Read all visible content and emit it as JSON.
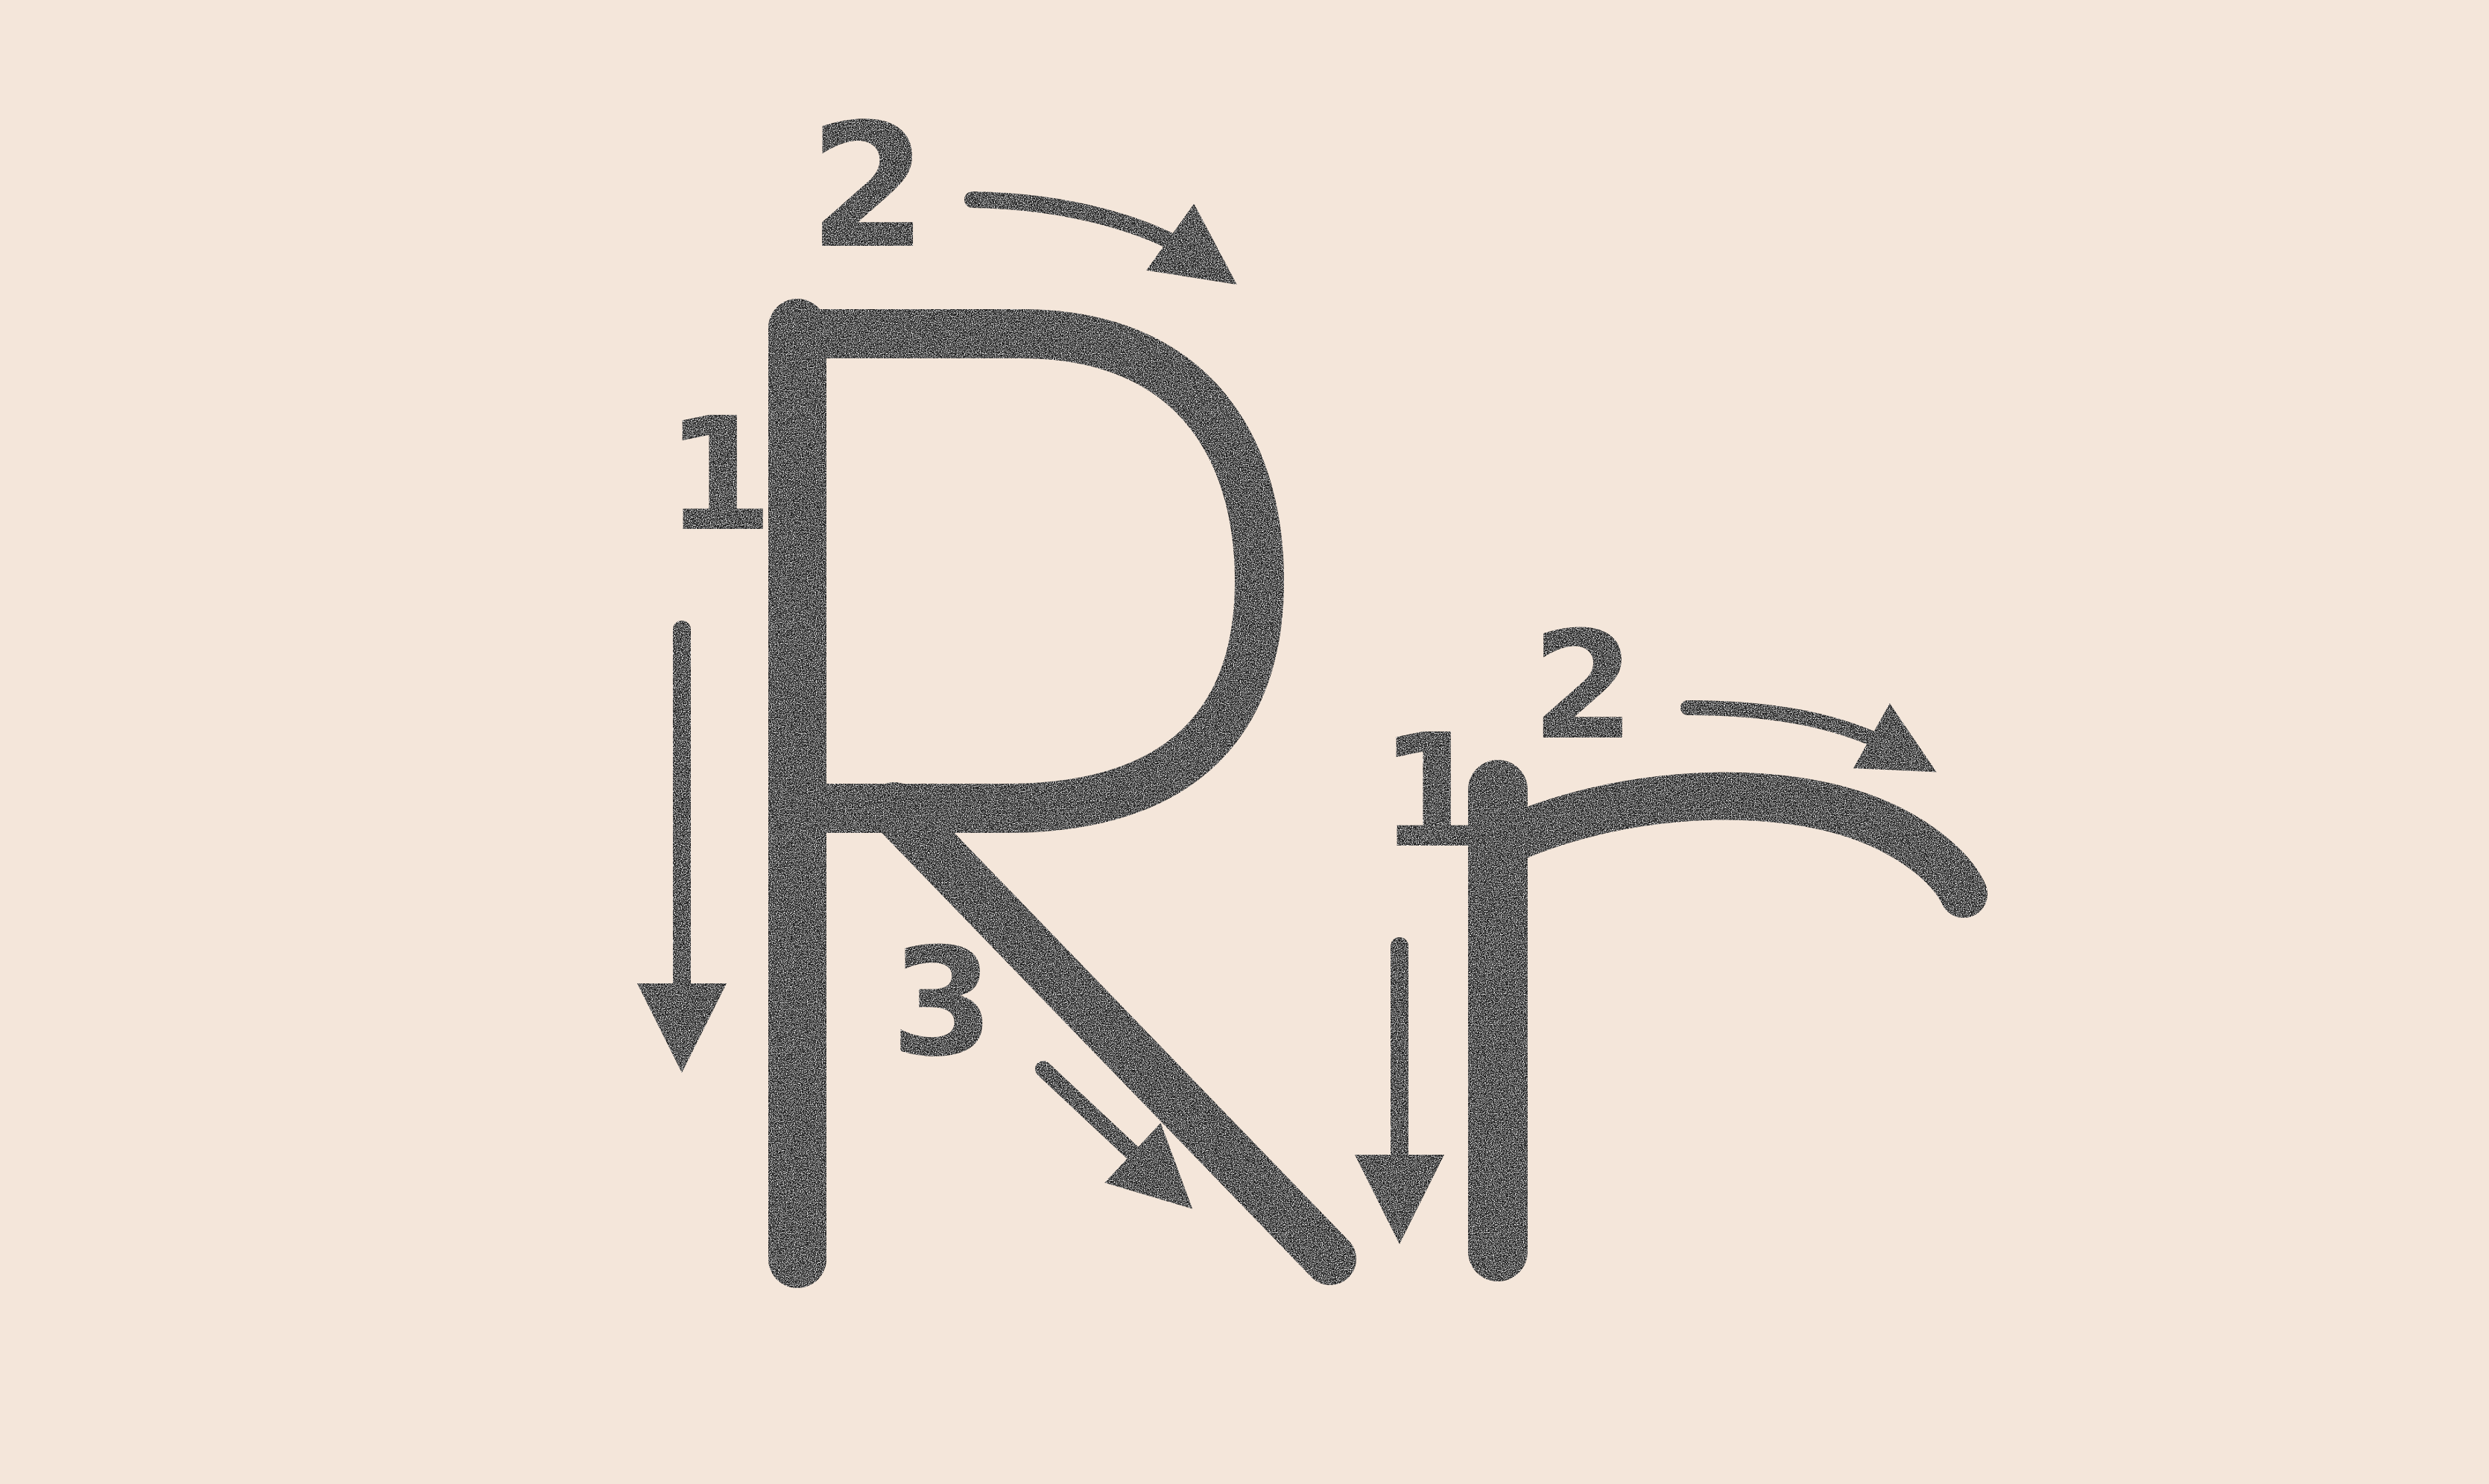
{
  "ink_color": "#1a1a1a",
  "paper_color": "#f4e6da",
  "uppercase": {
    "stroke_numbers": {
      "stroke_1": "1",
      "stroke_2": "2",
      "stroke_3": "3"
    }
  },
  "lowercase": {
    "stroke_numbers": {
      "stroke_1": "1",
      "stroke_2": "2"
    }
  }
}
